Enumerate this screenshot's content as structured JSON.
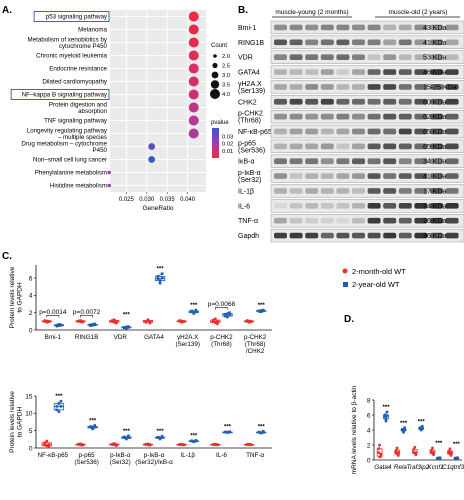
{
  "panel_letters": {
    "a": "A.",
    "b": "B.",
    "c": "C.",
    "d": "D."
  },
  "colors": {
    "young": "#e8312f",
    "old": "#1f5fb3",
    "frame": "#111111",
    "blot_bg": "#e9e9e9",
    "band": "#1a1a1a"
  },
  "panel_a": {
    "xlabel": "GeneRatio",
    "size_legend_title": "Count",
    "color_legend_title": "pvalue",
    "size_legend_labels": [
      "2.0",
      "2.5",
      "3.0",
      "3.5",
      "4.0"
    ],
    "color_legend_labels": [
      "0.03",
      "0.02",
      "0.01"
    ],
    "xticks": [
      "0.025",
      "0.030",
      "0.035",
      "0.040"
    ],
    "terms": [
      "p53 signaling pathway",
      "Melanoma",
      "Metabolism of xenobiotics by\ncytochrome P450",
      "Chronic myeloid leukemia",
      "Endocrine resistance",
      "Dilated cardiomyopathy",
      "NF–kappa B signaling pathway",
      "Protein digestion and\nabsorption",
      "TNF signaling pathway",
      "Longevity regulating pathway\n– multiple species",
      "Drug metabolism – cytochrome\nP450",
      "Non–small cell lung cancer",
      "Phenylalanine metabolism",
      "Histidine metabolism"
    ],
    "boxed_terms": [
      "p53 signaling pathway",
      "NF–kappa B signaling pathway"
    ]
  },
  "panel_b": {
    "group_young": "muscle-young (2 months)",
    "group_old": "muscle-old (2 years)",
    "blots": [
      {
        "label": "Bmi-1",
        "size": "43 KDa"
      },
      {
        "label": "RING1B",
        "size": "41 KDa"
      },
      {
        "label": "VDR",
        "size": "53 KDa"
      },
      {
        "label": "GATA4",
        "size": "46 KDa"
      },
      {
        "label": "γH2A.X\n(Ser139)",
        "size": "15-25 KDa"
      },
      {
        "label": "CHK2",
        "size": "60 KDa"
      },
      {
        "label": "p-CHK2\n(Thr68)",
        "size": "62 KDa"
      },
      {
        "label": "NF-κB-p65",
        "size": "65 KDa"
      },
      {
        "label": "p-p65\n(Ser536)",
        "size": "65 KDa"
      },
      {
        "label": "IκB-α",
        "size": "34 KDa"
      },
      {
        "label": "p-IκB-α\n(Ser32)",
        "size": "41 KDa"
      },
      {
        "label": "IL-1β",
        "size": "17 KDa"
      },
      {
        "label": "IL-6",
        "size": "24 KDa"
      },
      {
        "label": "TNF-α",
        "size": "26 KDa"
      },
      {
        "label": "Gapdh",
        "size": "36 KDa"
      }
    ]
  },
  "panel_c": {
    "ylabel": "Protein levels relative\nto GAPDH",
    "legend_young": "2-month-old WT",
    "legend_old": "2-year-old WT",
    "top_categories": [
      "Bmi-1",
      "RING1B",
      "VDR",
      "GATA4",
      "γH2A.X\n(Ser139)",
      "p-CHK2\n(Thr68)",
      "p-CHK2\n(Thr68)\n/CHK2"
    ],
    "top_pvalues": [
      "p=0.0014",
      "p=0.0072",
      "p=0.0068"
    ],
    "bottom_categories": [
      "NF-κB-p65",
      "p-p65\n(Ser536)",
      "p-IκB-α\n(Ser32)",
      "p-IκB-α\n(Ser32)/IκB-α",
      "IL-1β",
      "IL-6",
      "TNF-α"
    ],
    "star_label": "***"
  },
  "panel_d": {
    "ylabel": "mRNA levels relative to β-actin",
    "star_label": "***"
  },
  "chart_data": [
    {
      "type": "scatter",
      "panel": "A",
      "xlabel": "GeneRatio",
      "xlim": [
        0.021,
        0.0445
      ],
      "categories": [
        "p53 signaling pathway",
        "Melanoma",
        "Metabolism of xenobiotics by cytochrome P450",
        "Chronic myeloid leukemia",
        "Endocrine resistance",
        "Dilated cardiomyopathy",
        "NF–kappa B signaling pathway",
        "Protein digestion and absorption",
        "TNF signaling pathway",
        "Longevity regulating pathway – multiple species",
        "Drug metabolism – cytochrome P450",
        "Non–small cell lung cancer",
        "Phenylalanine metabolism",
        "Histidine metabolism"
      ],
      "x": [
        0.0415,
        0.0415,
        0.0415,
        0.0415,
        0.0415,
        0.0415,
        0.0415,
        0.0415,
        0.0415,
        0.0415,
        0.0312,
        0.0312,
        0.0208,
        0.0208
      ],
      "count": [
        4,
        4,
        4,
        4,
        4,
        4,
        4,
        4,
        4,
        4,
        3,
        3,
        2,
        2
      ],
      "pvalue": [
        0.002,
        0.003,
        0.004,
        0.005,
        0.007,
        0.008,
        0.01,
        0.014,
        0.016,
        0.018,
        0.036,
        0.042,
        0.022,
        0.024
      ],
      "size_range": [
        2.0,
        4.0
      ],
      "pvalue_range": [
        0.0,
        0.042
      ],
      "grid": true
    },
    {
      "type": "scatter",
      "panel": "C-top",
      "ylabel": "Protein levels relative to GAPDH",
      "ylim": [
        0,
        7.5
      ],
      "yticks": [
        0,
        2,
        4,
        6
      ],
      "categories": [
        "Bmi-1",
        "RING1B",
        "VDR",
        "GATA4",
        "γH2A.X (Ser139)",
        "p-CHK2 (Thr68)",
        "p-CHK2 (Thr68)/CHK2"
      ],
      "series": [
        {
          "name": "2-month-old WT",
          "values": [
            [
              1.0,
              1.05,
              0.95,
              1.1,
              0.9,
              1.0
            ],
            [
              1.0,
              1.1,
              0.9,
              1.05,
              0.95,
              1.0
            ],
            [
              1.0,
              1.2,
              0.8,
              1.1,
              0.9,
              1.0
            ],
            [
              1.0,
              1.2,
              0.8,
              0.9,
              1.1,
              1.0
            ],
            [
              1.0,
              1.05,
              0.95,
              1.1,
              0.9,
              1.0
            ],
            [
              1.0,
              1.3,
              0.7,
              1.15,
              0.85,
              1.0
            ],
            [
              1.0,
              1.05,
              0.95,
              1.1,
              0.9,
              1.0
            ]
          ]
        },
        {
          "name": "2-year-old WT",
          "values": [
            [
              0.55,
              0.5,
              0.6,
              0.45,
              0.65,
              0.55
            ],
            [
              0.6,
              0.55,
              0.7,
              0.5,
              0.65,
              0.6
            ],
            [
              0.3,
              0.2,
              0.4,
              0.25,
              0.35,
              0.3
            ],
            [
              5.9,
              5.4,
              6.5,
              6.2,
              5.7,
              6.0
            ],
            [
              2.1,
              2.0,
              2.3,
              2.2,
              1.9,
              2.1
            ],
            [
              1.8,
              1.5,
              2.0,
              1.6,
              1.9,
              1.7
            ],
            [
              2.2,
              2.1,
              2.3,
              2.15,
              2.25,
              2.2
            ]
          ]
        }
      ],
      "annotations": [
        "p=0.0014",
        "p=0.0072",
        "***",
        "***",
        "***",
        "p=0.0068",
        "***"
      ]
    },
    {
      "type": "scatter",
      "panel": "C-bottom",
      "ylabel": "Protein levels relative to GAPDH",
      "ylim": [
        0,
        15
      ],
      "yticks": [
        0,
        5,
        10,
        15
      ],
      "categories": [
        "NF-κB-p65",
        "p-p65 (Ser536)",
        "p-IκB-α (Ser32)",
        "p-IκB-α (Ser32)/IκB-α",
        "IL-1β",
        "IL-6",
        "TNF-α"
      ],
      "series": [
        {
          "name": "2-month-old WT",
          "values": [
            [
              1.0,
              2.0,
              0.5,
              1.5,
              0.6,
              1.0
            ],
            [
              1.0,
              1.2,
              0.8,
              1.1,
              0.9,
              1.0
            ],
            [
              1.0,
              1.3,
              0.7,
              1.1,
              0.9,
              1.0
            ],
            [
              1.0,
              1.2,
              0.8,
              1.1,
              0.9,
              1.0
            ],
            [
              1.0,
              1.1,
              0.9,
              1.05,
              0.95,
              1.0
            ],
            [
              1.0,
              1.1,
              0.9,
              1.05,
              0.95,
              1.0
            ],
            [
              1.0,
              1.1,
              0.9,
              1.05,
              0.95,
              1.0
            ]
          ]
        },
        {
          "name": "2-year-old WT",
          "values": [
            [
              12.0,
              10.5,
              13.5,
              11.0,
              12.8,
              12.0
            ],
            [
              6.0,
              5.5,
              6.5,
              6.2,
              5.8,
              6.0
            ],
            [
              3.0,
              2.6,
              3.5,
              3.2,
              2.8,
              3.0
            ],
            [
              3.0,
              2.6,
              3.4,
              3.1,
              2.9,
              3.0
            ],
            [
              2.0,
              1.8,
              2.2,
              2.1,
              1.9,
              2.0
            ],
            [
              4.6,
              4.5,
              4.7,
              4.6,
              4.5,
              4.6
            ],
            [
              4.5,
              4.3,
              4.8,
              4.6,
              4.4,
              4.5
            ]
          ]
        }
      ],
      "annotations": [
        "***",
        "***",
        "***",
        "***",
        "***",
        "***",
        "***"
      ]
    },
    {
      "type": "scatter",
      "panel": "D",
      "ylabel": "mRNA levels relative to β-actin",
      "ylim": [
        0,
        8
      ],
      "yticks": [
        0,
        2,
        4,
        6,
        8
      ],
      "categories": [
        "Gata4",
        "Rela",
        "Traf3ip2",
        "Kcnf1",
        "C1qtnf3"
      ],
      "series": [
        {
          "name": "2-month-old WT",
          "values": [
            [
              1.0,
              2.0,
              0.5,
              1.5,
              0.4,
              0.8
            ],
            [
              1.0,
              1.6,
              0.6,
              1.3,
              0.8,
              1.0
            ],
            [
              1.0,
              1.7,
              0.7,
              1.4,
              0.9,
              1.0
            ],
            [
              1.0,
              1.6,
              0.7,
              1.3,
              0.9,
              1.0
            ],
            [
              1.0,
              1.5,
              0.6,
              1.2,
              0.8,
              1.0
            ]
          ]
        },
        {
          "name": "2-year-old WT",
          "values": [
            [
              5.8,
              5.2,
              6.4,
              6.0,
              5.5,
              5.9
            ],
            [
              4.0,
              3.7,
              4.3,
              4.1,
              3.9,
              4.0
            ],
            [
              4.2,
              4.0,
              4.5,
              4.3,
              4.1,
              4.2
            ],
            [
              0.25,
              0.2,
              0.3,
              0.22,
              0.28,
              0.25
            ],
            [
              0.25,
              0.2,
              0.3,
              0.22,
              0.28,
              0.25
            ]
          ]
        }
      ],
      "annotations": [
        "***",
        "***",
        "***",
        "***",
        "***"
      ]
    }
  ]
}
